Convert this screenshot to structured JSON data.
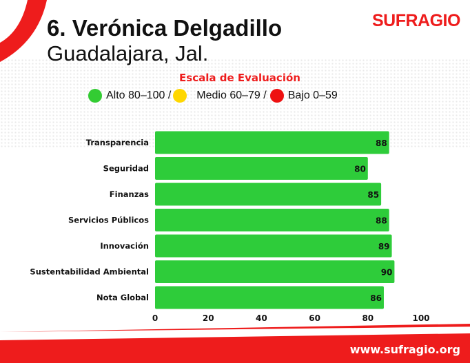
{
  "header": {
    "title": "6. Verónica Delgadillo",
    "subtitle": "Guadalajara, Jal.",
    "logo": "SUFRAGIO"
  },
  "scale": {
    "title": "Escala de Evaluación",
    "items": [
      {
        "label": "Alto 80–100 /",
        "color": "#33cc33"
      },
      {
        "label": "Medio 60–79 /",
        "color": "#ffd700"
      },
      {
        "label": "Bajo 0–59",
        "color": "#ee1111"
      }
    ]
  },
  "chart_data": {
    "type": "bar",
    "orientation": "horizontal",
    "categories": [
      "Transparencia",
      "Seguridad",
      "Finanzas",
      "Servicios Públicos",
      "Innovación",
      "Sustentabilidad Ambiental",
      "Nota Global"
    ],
    "values": [
      88,
      80,
      85,
      88,
      89,
      90,
      86
    ],
    "xlim": [
      0,
      100
    ],
    "xticks": [
      0,
      20,
      40,
      60,
      80,
      100
    ],
    "bar_color": "#2ecc3a",
    "grid": false
  },
  "footer": {
    "url": "www.sufragio.org"
  }
}
